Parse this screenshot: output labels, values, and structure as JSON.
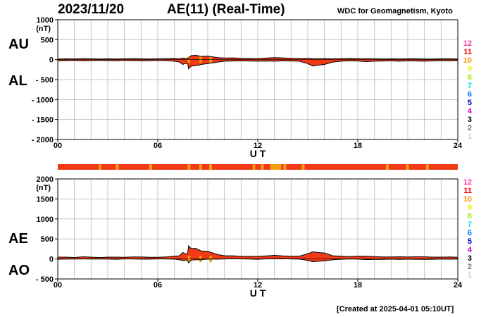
{
  "header": {
    "date": "2023/11/20",
    "title": "AE(11) (Real-Time)",
    "source": "WDC for Geomagnetism, Kyoto"
  },
  "footer": {
    "created": "[Created at 2025-04-01 05:10UT]"
  },
  "palette": {
    "fill_red": "#f23b16",
    "fill_orange": "#f0a00c",
    "line": "#000000",
    "grid": "#b8b8b8"
  },
  "legend": {
    "items": [
      {
        "label": "12",
        "color": "#ff3399"
      },
      {
        "label": "11",
        "color": "#ff0000"
      },
      {
        "label": "10",
        "color": "#ff9900"
      },
      {
        "label": "9",
        "color": "#eeee00"
      },
      {
        "label": "8",
        "color": "#99ee00"
      },
      {
        "label": "7",
        "color": "#00dddd"
      },
      {
        "label": "6",
        "color": "#0077ff"
      },
      {
        "label": "5",
        "color": "#0000cc"
      },
      {
        "label": "4",
        "color": "#cc00cc"
      },
      {
        "label": "3",
        "color": "#000000"
      },
      {
        "label": "2",
        "color": "#777777"
      },
      {
        "label": "1",
        "color": "#cccccc"
      }
    ]
  },
  "chart_data": [
    {
      "type": "area",
      "name": "AU/AL",
      "labels": {
        "upper": "AU",
        "lower": "AL"
      },
      "unit": "(nT)",
      "ylim": [
        -2000,
        1000
      ],
      "yticks": [
        1000,
        500,
        0,
        -500,
        -1000,
        -1500,
        -2000
      ],
      "ytick_labels": [
        "1000",
        "500",
        "0",
        "- 500",
        "- 1000",
        "- 1500",
        "- 2000"
      ],
      "xlim": [
        0,
        24
      ],
      "xticks": [
        0,
        6,
        12,
        18,
        24
      ],
      "xtick_labels": [
        "00",
        "06",
        "12",
        "18",
        "24"
      ],
      "xlabel": "U T",
      "grid": true,
      "x": [
        0,
        0.5,
        1,
        1.5,
        2,
        2.5,
        3,
        3.5,
        4,
        4.5,
        5,
        5.5,
        6,
        6.5,
        7,
        7.3,
        7.5,
        7.7,
        7.8,
        7.85,
        8,
        8.3,
        8.6,
        9,
        9.3,
        9.6,
        10,
        10.5,
        11,
        11.5,
        12,
        12.5,
        13,
        13.5,
        14,
        14.5,
        15,
        15.3,
        15.6,
        16,
        16.5,
        17,
        17.5,
        18,
        18.5,
        19,
        19.5,
        20,
        20.5,
        21,
        21.5,
        22,
        22.5,
        23,
        23.5,
        24
      ],
      "upper": [
        15,
        20,
        15,
        25,
        20,
        15,
        20,
        15,
        20,
        25,
        20,
        15,
        20,
        25,
        30,
        20,
        40,
        30,
        40,
        20,
        100,
        110,
        80,
        90,
        70,
        50,
        40,
        45,
        35,
        30,
        25,
        40,
        50,
        45,
        35,
        30,
        30,
        25,
        20,
        25,
        20,
        25,
        30,
        25,
        20,
        20,
        15,
        20,
        15,
        20,
        20,
        15,
        15,
        20,
        20,
        15
      ],
      "lower": [
        -30,
        -25,
        -20,
        -30,
        -25,
        -20,
        -25,
        -30,
        -20,
        -25,
        -30,
        -25,
        -20,
        -25,
        -40,
        -60,
        -120,
        -90,
        -110,
        -230,
        -160,
        -150,
        -120,
        -100,
        -80,
        -60,
        -40,
        -35,
        -30,
        -35,
        -40,
        -35,
        -40,
        -30,
        -35,
        -40,
        -100,
        -160,
        -140,
        -120,
        -60,
        -40,
        -30,
        -35,
        -50,
        -40,
        -35,
        -30,
        -40,
        -30,
        -35,
        -40,
        -30,
        -25,
        -30,
        -25
      ]
    },
    {
      "type": "area",
      "name": "AE/AO",
      "labels": {
        "upper": "AE",
        "lower": "AO"
      },
      "unit": "(nT)",
      "ylim": [
        -500,
        2000
      ],
      "yticks": [
        2000,
        1500,
        1000,
        500,
        0,
        -500
      ],
      "ytick_labels": [
        "2000",
        "1500",
        "1000",
        "500",
        "0",
        "- 500"
      ],
      "xlim": [
        0,
        24
      ],
      "xticks": [
        0,
        6,
        12,
        18,
        24
      ],
      "xtick_labels": [
        "00",
        "06",
        "12",
        "18",
        "24"
      ],
      "xlabel": "U T",
      "grid": true,
      "x": [
        0,
        0.5,
        1,
        1.5,
        2,
        2.5,
        3,
        3.5,
        4,
        4.5,
        5,
        5.5,
        6,
        6.5,
        7,
        7.3,
        7.5,
        7.7,
        7.8,
        7.85,
        8,
        8.3,
        8.6,
        9,
        9.3,
        9.6,
        10,
        10.5,
        11,
        11.5,
        12,
        12.5,
        13,
        13.5,
        14,
        14.5,
        15,
        15.3,
        15.6,
        16,
        16.5,
        17,
        17.5,
        18,
        18.5,
        19,
        19.5,
        20,
        20.5,
        21,
        21.5,
        22,
        22.5,
        23,
        23.5,
        24
      ],
      "upper": [
        45,
        45,
        35,
        55,
        45,
        35,
        45,
        45,
        40,
        50,
        50,
        40,
        40,
        50,
        70,
        80,
        160,
        120,
        150,
        330,
        260,
        260,
        200,
        190,
        150,
        110,
        80,
        80,
        65,
        65,
        65,
        75,
        90,
        75,
        70,
        70,
        130,
        180,
        160,
        150,
        80,
        70,
        60,
        70,
        70,
        60,
        50,
        50,
        55,
        50,
        55,
        55,
        45,
        45,
        50,
        40
      ],
      "upper_peak_at_7.85": 340,
      "lower": [
        -8,
        -3,
        -3,
        2,
        -3,
        -3,
        -3,
        -8,
        0,
        0,
        -5,
        -5,
        0,
        0,
        -5,
        -20,
        -40,
        -30,
        -35,
        -100,
        -30,
        -20,
        -20,
        -5,
        -5,
        -5,
        0,
        5,
        2,
        -3,
        -8,
        2,
        5,
        8,
        0,
        -5,
        -35,
        -68,
        -60,
        -48,
        -20,
        -8,
        0,
        -5,
        -15,
        -10,
        -10,
        -5,
        -13,
        -5,
        -8,
        -13,
        -8,
        -3,
        -5,
        -5
      ]
    },
    {
      "type": "table",
      "name": "activity-band",
      "xlim": [
        0,
        24
      ],
      "segments": [
        {
          "start": 0,
          "end": 2.45,
          "level": "11"
        },
        {
          "start": 2.45,
          "end": 2.6,
          "level": "10"
        },
        {
          "start": 2.6,
          "end": 3.5,
          "level": "11"
        },
        {
          "start": 3.5,
          "end": 3.65,
          "level": "10"
        },
        {
          "start": 3.65,
          "end": 5.5,
          "level": "11"
        },
        {
          "start": 5.5,
          "end": 5.65,
          "level": "10"
        },
        {
          "start": 5.65,
          "end": 7.8,
          "level": "11"
        },
        {
          "start": 7.8,
          "end": 7.95,
          "level": "10"
        },
        {
          "start": 7.95,
          "end": 8.5,
          "level": "11"
        },
        {
          "start": 8.5,
          "end": 8.65,
          "level": "10"
        },
        {
          "start": 8.65,
          "end": 9.1,
          "level": "11"
        },
        {
          "start": 9.1,
          "end": 9.25,
          "level": "10"
        },
        {
          "start": 9.25,
          "end": 11.7,
          "level": "11"
        },
        {
          "start": 11.7,
          "end": 11.85,
          "level": "10"
        },
        {
          "start": 11.85,
          "end": 12.2,
          "level": "11"
        },
        {
          "start": 12.2,
          "end": 12.35,
          "level": "10"
        },
        {
          "start": 12.35,
          "end": 12.75,
          "level": "11"
        },
        {
          "start": 12.75,
          "end": 13.4,
          "level": "10"
        },
        {
          "start": 13.4,
          "end": 13.55,
          "level": "11"
        },
        {
          "start": 13.55,
          "end": 13.7,
          "level": "10"
        },
        {
          "start": 13.7,
          "end": 14.65,
          "level": "11"
        },
        {
          "start": 14.65,
          "end": 14.8,
          "level": "10"
        },
        {
          "start": 14.8,
          "end": 19.7,
          "level": "11"
        },
        {
          "start": 19.7,
          "end": 19.85,
          "level": "10"
        },
        {
          "start": 19.85,
          "end": 20.9,
          "level": "11"
        },
        {
          "start": 20.9,
          "end": 21.05,
          "level": "10"
        },
        {
          "start": 21.05,
          "end": 22.1,
          "level": "11"
        },
        {
          "start": 22.1,
          "end": 22.25,
          "level": "10"
        },
        {
          "start": 22.25,
          "end": 24,
          "level": "11"
        }
      ]
    }
  ]
}
